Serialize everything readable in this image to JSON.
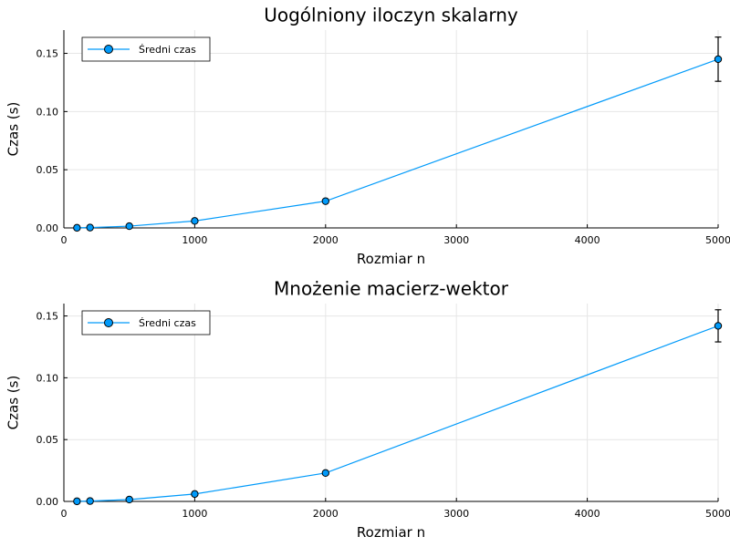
{
  "chart_data": [
    {
      "type": "line",
      "title": "Uogólniony iloczyn skalarny",
      "xlabel": "Rozmiar n",
      "ylabel": "Czas (s)",
      "xlim": [
        0,
        5000
      ],
      "ylim": [
        0,
        0.17
      ],
      "xticks": [
        0,
        1000,
        2000,
        3000,
        4000,
        5000
      ],
      "xtick_labels": [
        "0",
        "1000",
        "2000",
        "3000",
        "4000",
        "5000"
      ],
      "yticks": [
        0.0,
        0.05,
        0.1,
        0.15
      ],
      "ytick_labels": [
        "0.00",
        "0.05",
        "0.10",
        "0.15"
      ],
      "grid": true,
      "legend_position": "top-left",
      "series": [
        {
          "name": "Średni czas",
          "color": "#009AFA",
          "marker": "circle",
          "x": [
            100,
            200,
            500,
            1000,
            2000,
            5000
          ],
          "y": [
            0.0001,
            0.0003,
            0.0015,
            0.006,
            0.023,
            0.145
          ],
          "err": [
            0,
            0,
            0,
            0,
            0,
            0.019
          ]
        }
      ]
    },
    {
      "type": "line",
      "title": "Mnożenie macierz-wektor",
      "xlabel": "Rozmiar n",
      "ylabel": "Czas (s)",
      "xlim": [
        0,
        5000
      ],
      "ylim": [
        0,
        0.16
      ],
      "xticks": [
        0,
        1000,
        2000,
        3000,
        4000,
        5000
      ],
      "xtick_labels": [
        "0",
        "1000",
        "2000",
        "3000",
        "4000",
        "5000"
      ],
      "yticks": [
        0.0,
        0.05,
        0.1,
        0.15
      ],
      "ytick_labels": [
        "0.00",
        "0.05",
        "0.10",
        "0.15"
      ],
      "grid": true,
      "legend_position": "top-left",
      "series": [
        {
          "name": "Średni czas",
          "color": "#009AFA",
          "marker": "circle",
          "x": [
            100,
            200,
            500,
            1000,
            2000,
            5000
          ],
          "y": [
            0.0001,
            0.0003,
            0.0015,
            0.006,
            0.023,
            0.142
          ],
          "err": [
            0,
            0,
            0,
            0,
            0,
            0.013
          ]
        }
      ]
    }
  ]
}
